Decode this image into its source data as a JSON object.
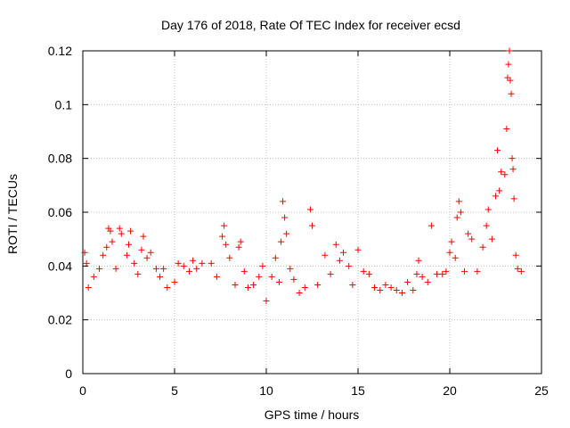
{
  "chart_data": {
    "type": "scatter",
    "title": "Day 176 of 2018, Rate Of TEC Index for receiver ecsd",
    "xlabel": "GPS time / hours",
    "ylabel": "ROTI / TECUs",
    "xlim": [
      0,
      25
    ],
    "ylim": [
      0,
      0.12
    ],
    "xticks": [
      0,
      5,
      10,
      15,
      20,
      25
    ],
    "yticks": [
      0,
      0.02,
      0.04,
      0.06,
      0.08,
      0.1,
      0.12
    ],
    "xtick_labels": [
      "0",
      "5",
      "10",
      "15",
      "20",
      "25"
    ],
    "ytick_labels": [
      "0",
      "0.02",
      "0.04",
      "0.06",
      "0.08",
      "0.1",
      "0.12"
    ],
    "grid": true,
    "marker": "+",
    "color": "#ff0000",
    "series": [
      {
        "name": "ROTI",
        "points": [
          [
            0.1,
            0.045
          ],
          [
            0.2,
            0.041
          ],
          [
            0.3,
            0.032
          ],
          [
            0.6,
            0.036
          ],
          [
            0.9,
            0.039
          ],
          [
            1.1,
            0.044
          ],
          [
            1.3,
            0.047
          ],
          [
            1.4,
            0.054
          ],
          [
            1.5,
            0.053
          ],
          [
            1.6,
            0.049
          ],
          [
            1.8,
            0.039
          ],
          [
            2.0,
            0.054
          ],
          [
            2.1,
            0.052
          ],
          [
            2.4,
            0.044
          ],
          [
            2.5,
            0.048
          ],
          [
            2.6,
            0.053
          ],
          [
            2.8,
            0.041
          ],
          [
            3.0,
            0.037
          ],
          [
            3.2,
            0.046
          ],
          [
            3.3,
            0.051
          ],
          [
            3.5,
            0.043
          ],
          [
            3.7,
            0.045
          ],
          [
            4.0,
            0.039
          ],
          [
            4.2,
            0.036
          ],
          [
            4.4,
            0.039
          ],
          [
            4.6,
            0.032
          ],
          [
            5.0,
            0.034
          ],
          [
            5.2,
            0.041
          ],
          [
            5.5,
            0.04
          ],
          [
            5.8,
            0.038
          ],
          [
            6.0,
            0.042
          ],
          [
            6.2,
            0.039
          ],
          [
            6.5,
            0.041
          ],
          [
            7.0,
            0.041
          ],
          [
            7.3,
            0.036
          ],
          [
            7.6,
            0.051
          ],
          [
            7.7,
            0.055
          ],
          [
            7.8,
            0.048
          ],
          [
            8.0,
            0.043
          ],
          [
            8.3,
            0.033
          ],
          [
            8.5,
            0.047
          ],
          [
            8.6,
            0.049
          ],
          [
            8.8,
            0.038
          ],
          [
            9.0,
            0.032
          ],
          [
            9.3,
            0.033
          ],
          [
            9.6,
            0.036
          ],
          [
            9.8,
            0.04
          ],
          [
            10.0,
            0.027
          ],
          [
            10.3,
            0.036
          ],
          [
            10.5,
            0.043
          ],
          [
            10.7,
            0.034
          ],
          [
            10.8,
            0.049
          ],
          [
            10.9,
            0.064
          ],
          [
            11.0,
            0.058
          ],
          [
            11.1,
            0.052
          ],
          [
            11.3,
            0.039
          ],
          [
            11.5,
            0.035
          ],
          [
            11.8,
            0.03
          ],
          [
            12.1,
            0.032
          ],
          [
            12.4,
            0.061
          ],
          [
            12.5,
            0.055
          ],
          [
            12.8,
            0.033
          ],
          [
            13.2,
            0.044
          ],
          [
            13.5,
            0.037
          ],
          [
            13.8,
            0.048
          ],
          [
            14.0,
            0.042
          ],
          [
            14.2,
            0.045
          ],
          [
            14.5,
            0.04
          ],
          [
            14.7,
            0.033
          ],
          [
            15.0,
            0.046
          ],
          [
            15.3,
            0.038
          ],
          [
            15.6,
            0.037
          ],
          [
            15.9,
            0.032
          ],
          [
            16.2,
            0.031
          ],
          [
            16.5,
            0.033
          ],
          [
            16.8,
            0.032
          ],
          [
            17.1,
            0.031
          ],
          [
            17.4,
            0.03
          ],
          [
            17.7,
            0.034
          ],
          [
            18.0,
            0.031
          ],
          [
            18.2,
            0.037
          ],
          [
            18.3,
            0.042
          ],
          [
            18.5,
            0.036
          ],
          [
            18.8,
            0.034
          ],
          [
            19.0,
            0.055
          ],
          [
            19.3,
            0.037
          ],
          [
            19.6,
            0.037
          ],
          [
            19.8,
            0.038
          ],
          [
            20.0,
            0.045
          ],
          [
            20.1,
            0.049
          ],
          [
            20.3,
            0.043
          ],
          [
            20.4,
            0.058
          ],
          [
            20.5,
            0.064
          ],
          [
            20.6,
            0.06
          ],
          [
            20.8,
            0.038
          ],
          [
            21.0,
            0.052
          ],
          [
            21.2,
            0.05
          ],
          [
            21.5,
            0.038
          ],
          [
            21.8,
            0.047
          ],
          [
            22.0,
            0.055
          ],
          [
            22.1,
            0.061
          ],
          [
            22.3,
            0.05
          ],
          [
            22.5,
            0.066
          ],
          [
            22.6,
            0.083
          ],
          [
            22.7,
            0.068
          ],
          [
            22.8,
            0.075
          ],
          [
            23.0,
            0.074
          ],
          [
            23.1,
            0.091
          ],
          [
            23.15,
            0.11
          ],
          [
            23.2,
            0.115
          ],
          [
            23.25,
            0.12
          ],
          [
            23.3,
            0.109
          ],
          [
            23.35,
            0.104
          ],
          [
            23.4,
            0.08
          ],
          [
            23.45,
            0.076
          ],
          [
            23.5,
            0.065
          ],
          [
            23.6,
            0.044
          ],
          [
            23.7,
            0.039
          ],
          [
            23.9,
            0.038
          ]
        ]
      }
    ]
  }
}
